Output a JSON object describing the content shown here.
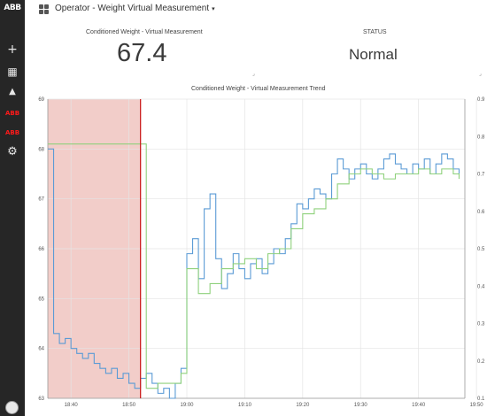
{
  "sidebar": {
    "logo": "ABB",
    "items": [
      {
        "name": "add",
        "icon": "plus-icon",
        "glyph": "+"
      },
      {
        "name": "dashboards",
        "icon": "dashboard-grid-icon",
        "glyph": "▦"
      },
      {
        "name": "alarms",
        "icon": "bell-icon",
        "glyph": "🔔"
      },
      {
        "name": "abb-app-1",
        "label": "ABB"
      },
      {
        "name": "abb-app-2",
        "label": "ABB"
      },
      {
        "name": "settings",
        "icon": "gear-icon",
        "glyph": "⚙"
      }
    ]
  },
  "header": {
    "title": "Operator - Weight Virtual Measurement",
    "dropdown_glyph": "▾"
  },
  "panels": {
    "kpi": {
      "label": "Conditioned Weight - Virtual Measurement",
      "value": "67.4"
    },
    "status": {
      "label": "STATUS",
      "value": "Normal"
    }
  },
  "colors": {
    "blue": "#5b9bd5",
    "green": "#8fd17c",
    "red_band": "#f0c4bf",
    "red_line": "#cc2222",
    "sidebar": "#262626"
  },
  "chart_data": {
    "type": "line",
    "title": "Conditioned Weight - Virtual Measurement Trend",
    "x_ticks": [
      "18:40",
      "18:50",
      "19:00",
      "19:10",
      "19:20",
      "19:30",
      "19:40",
      "19:50"
    ],
    "x_range": [
      "18:36",
      "19:48"
    ],
    "y_left": {
      "ticks": [
        "69",
        "68",
        "67",
        "66",
        "65",
        "64",
        "63"
      ],
      "range": [
        63,
        69
      ]
    },
    "y_right": {
      "ticks": [
        "0.9",
        "0.8",
        "0.7",
        "0.6",
        "0.5",
        "0.4",
        "0.3",
        "0.2",
        "0.1"
      ],
      "range": [
        0.1,
        0.9
      ]
    },
    "grid": true,
    "highlight": {
      "from": "18:36",
      "to": "18:52",
      "marker": "18:52"
    },
    "series": [
      {
        "color": "#5b9bd5",
        "x": [
          18.36,
          18.37,
          18.38,
          18.39,
          18.4,
          18.41,
          18.42,
          18.43,
          18.44,
          18.45,
          18.46,
          18.47,
          18.48,
          18.49,
          18.5,
          18.51,
          18.52,
          18.53,
          18.54,
          18.55,
          18.56,
          18.57,
          18.58,
          18.59,
          19.0,
          19.01,
          19.02,
          19.03,
          19.04,
          19.05,
          19.06,
          19.07,
          19.08,
          19.09,
          19.1,
          19.11,
          19.12,
          19.13,
          19.14,
          19.15,
          19.16,
          19.17,
          19.18,
          19.19,
          19.2,
          19.21,
          19.22,
          19.23,
          19.24,
          19.25,
          19.26,
          19.27,
          19.28,
          19.29,
          19.3,
          19.31,
          19.32,
          19.33,
          19.34,
          19.35,
          19.36,
          19.37,
          19.38,
          19.39,
          19.4,
          19.41,
          19.42,
          19.43,
          19.44,
          19.45,
          19.46,
          19.47
        ],
        "values": [
          68.0,
          64.3,
          64.1,
          64.2,
          64.0,
          63.9,
          63.8,
          63.9,
          63.7,
          63.6,
          63.5,
          63.6,
          63.4,
          63.5,
          63.3,
          63.2,
          63.4,
          63.5,
          63.3,
          63.1,
          63.2,
          63.0,
          63.3,
          63.6,
          65.9,
          66.2,
          65.4,
          66.8,
          67.1,
          65.8,
          65.2,
          65.5,
          65.9,
          65.6,
          65.4,
          65.7,
          65.8,
          65.5,
          65.7,
          66.0,
          65.9,
          66.2,
          66.5,
          66.9,
          66.8,
          67.0,
          67.2,
          67.1,
          67.0,
          67.5,
          67.8,
          67.6,
          67.4,
          67.6,
          67.7,
          67.5,
          67.4,
          67.6,
          67.8,
          67.9,
          67.7,
          67.6,
          67.5,
          67.7,
          67.6,
          67.8,
          67.5,
          67.7,
          67.9,
          67.8,
          67.6,
          67.5
        ],
        "smooth_note": ""
      },
      {
        "color": "#8fd17c",
        "x": [
          18.36,
          18.52,
          18.53,
          18.55,
          18.57,
          18.59,
          19.0,
          19.02,
          19.04,
          19.06,
          19.08,
          19.1,
          19.12,
          19.14,
          19.16,
          19.18,
          19.2,
          19.22,
          19.24,
          19.26,
          19.28,
          19.3,
          19.32,
          19.34,
          19.36,
          19.38,
          19.4,
          19.42,
          19.44,
          19.46,
          19.47
        ],
        "values": [
          68.1,
          68.1,
          63.2,
          63.3,
          63.3,
          63.5,
          65.6,
          65.1,
          65.3,
          65.6,
          65.7,
          65.8,
          65.6,
          65.9,
          66.0,
          66.4,
          66.7,
          66.8,
          67.0,
          67.3,
          67.5,
          67.6,
          67.5,
          67.4,
          67.5,
          67.5,
          67.6,
          67.5,
          67.6,
          67.5,
          67.4
        ]
      }
    ]
  }
}
